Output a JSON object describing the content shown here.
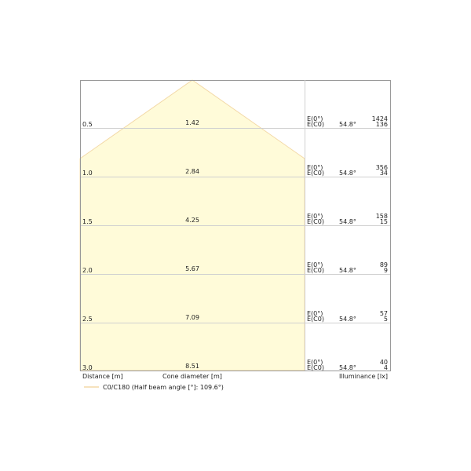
{
  "colors": {
    "cone_fill": "#fffbd9",
    "cone_edge": "#f3d9a8",
    "grid": "#d0d0d0",
    "frame": "#999999"
  },
  "rows": [
    {
      "distance": "0.5",
      "diameter": "1.42",
      "e0_label": "E(0°)",
      "ec0_label": "E(C0)",
      "angle": "54.8°",
      "e0": "1424",
      "ec0": "136"
    },
    {
      "distance": "1.0",
      "diameter": "2.84",
      "e0_label": "E(0°)",
      "ec0_label": "E(C0)",
      "angle": "54.8°",
      "e0": "356",
      "ec0": "34"
    },
    {
      "distance": "1.5",
      "diameter": "4.25",
      "e0_label": "E(0°)",
      "ec0_label": "E(C0)",
      "angle": "54.8°",
      "e0": "158",
      "ec0": "15"
    },
    {
      "distance": "2.0",
      "diameter": "5.67",
      "e0_label": "E(0°)",
      "ec0_label": "E(C0)",
      "angle": "54.8°",
      "e0": "89",
      "ec0": "9"
    },
    {
      "distance": "2.5",
      "diameter": "7.09",
      "e0_label": "E(0°)",
      "ec0_label": "E(C0)",
      "angle": "54.8°",
      "e0": "57",
      "ec0": "5"
    },
    {
      "distance": "3.0",
      "diameter": "8.51",
      "e0_label": "E(0°)",
      "ec0_label": "E(C0)",
      "angle": "54.8°",
      "e0": "40",
      "ec0": "4"
    }
  ],
  "footer": {
    "distance_label": "Distance [m]",
    "diameter_label": "Cone diameter [m]",
    "illuminance_label": "Illuminance [lx]"
  },
  "legend": {
    "label": "C0/C180 (Half beam angle [°]: 109.6°)"
  }
}
